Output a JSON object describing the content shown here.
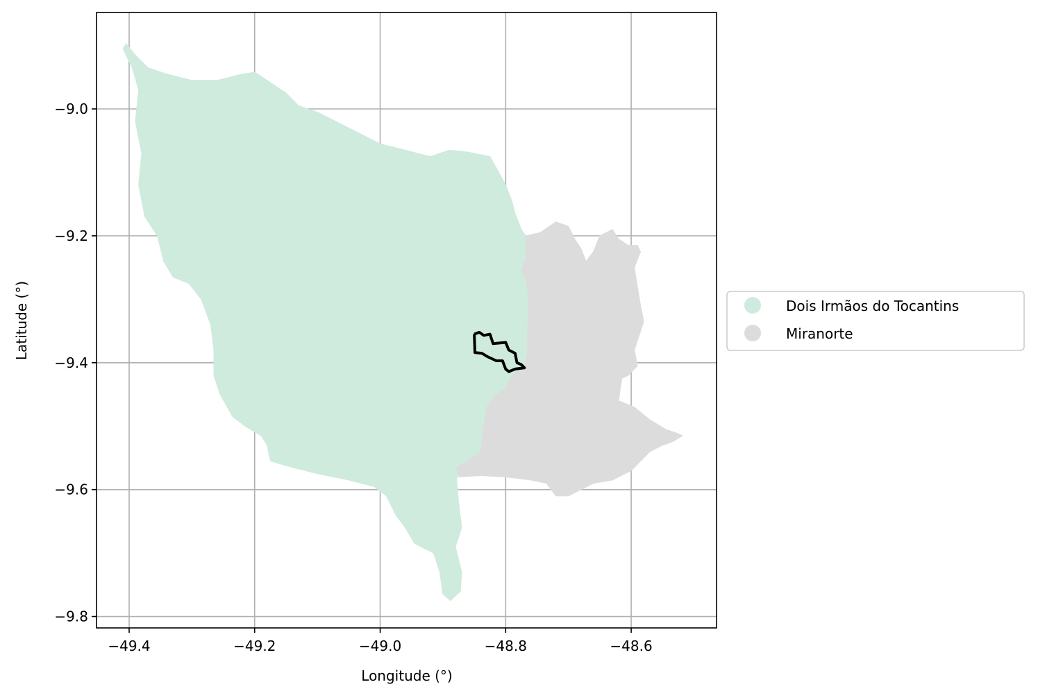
{
  "chart_data": {
    "type": "map",
    "xlabel": "Longitude (°)",
    "ylabel": "Latitude (°)",
    "xlim": [
      -49.452,
      -48.464
    ],
    "ylim": [
      -9.818,
      -8.848
    ],
    "grid": true,
    "x_ticks": [
      -49.4,
      -49.2,
      -49.0,
      -48.8,
      -48.6
    ],
    "y_ticks": [
      -9.0,
      -9.2,
      -9.4,
      -9.6,
      -9.8
    ],
    "x_tick_labels": [
      "−49.4",
      "−49.2",
      "−49.0",
      "−48.8",
      "−48.6"
    ],
    "y_tick_labels": [
      "−9.0",
      "−9.2",
      "−9.4",
      "−9.6",
      "−9.8"
    ],
    "legend_placement": "center-right, outside plot",
    "legend": [
      {
        "label": "Dois Irmãos do Tocantins",
        "color": "#cfebdd"
      },
      {
        "label": "Miranorte",
        "color": "#dcdcdc"
      }
    ],
    "regions": [
      {
        "name": "Dois Irmãos do Tocantins",
        "color": "#cfebdd",
        "polygon": [
          [
            -49.405,
            -8.897
          ],
          [
            -49.39,
            -8.915
          ],
          [
            -49.37,
            -8.935
          ],
          [
            -49.34,
            -8.945
          ],
          [
            -49.3,
            -8.955
          ],
          [
            -49.26,
            -8.955
          ],
          [
            -49.22,
            -8.945
          ],
          [
            -49.2,
            -8.942
          ],
          [
            -49.18,
            -8.955
          ],
          [
            -49.15,
            -8.975
          ],
          [
            -49.13,
            -8.995
          ],
          [
            -49.1,
            -9.005
          ],
          [
            -49.07,
            -9.02
          ],
          [
            -49.04,
            -9.035
          ],
          [
            -49.0,
            -9.055
          ],
          [
            -48.96,
            -9.065
          ],
          [
            -48.92,
            -9.075
          ],
          [
            -48.89,
            -9.065
          ],
          [
            -48.86,
            -9.068
          ],
          [
            -48.825,
            -9.075
          ],
          [
            -48.812,
            -9.098
          ],
          [
            -48.8,
            -9.12
          ],
          [
            -48.79,
            -9.145
          ],
          [
            -48.785,
            -9.165
          ],
          [
            -48.775,
            -9.19
          ],
          [
            -48.768,
            -9.2
          ],
          [
            -48.768,
            -9.235
          ],
          [
            -48.775,
            -9.255
          ],
          [
            -48.768,
            -9.268
          ],
          [
            -48.763,
            -9.3
          ],
          [
            -48.765,
            -9.35
          ],
          [
            -48.765,
            -9.385
          ],
          [
            -48.77,
            -9.405
          ],
          [
            -48.79,
            -9.42
          ],
          [
            -48.8,
            -9.44
          ],
          [
            -48.815,
            -9.45
          ],
          [
            -48.83,
            -9.47
          ],
          [
            -48.835,
            -9.5
          ],
          [
            -48.84,
            -9.54
          ],
          [
            -48.86,
            -9.555
          ],
          [
            -48.875,
            -9.565
          ],
          [
            -48.878,
            -9.585
          ],
          [
            -48.875,
            -9.62
          ],
          [
            -48.87,
            -9.66
          ],
          [
            -48.88,
            -9.69
          ],
          [
            -48.87,
            -9.73
          ],
          [
            -48.872,
            -9.76
          ],
          [
            -48.888,
            -9.775
          ],
          [
            -48.9,
            -9.765
          ],
          [
            -48.905,
            -9.73
          ],
          [
            -48.915,
            -9.7
          ],
          [
            -48.945,
            -9.685
          ],
          [
            -48.96,
            -9.66
          ],
          [
            -48.975,
            -9.64
          ],
          [
            -48.99,
            -9.61
          ],
          [
            -49.01,
            -9.595
          ],
          [
            -49.05,
            -9.585
          ],
          [
            -49.1,
            -9.575
          ],
          [
            -49.14,
            -9.565
          ],
          [
            -49.175,
            -9.555
          ],
          [
            -49.18,
            -9.53
          ],
          [
            -49.19,
            -9.515
          ],
          [
            -49.215,
            -9.5
          ],
          [
            -49.235,
            -9.485
          ],
          [
            -49.255,
            -9.45
          ],
          [
            -49.265,
            -9.42
          ],
          [
            -49.265,
            -9.38
          ],
          [
            -49.27,
            -9.34
          ],
          [
            -49.285,
            -9.3
          ],
          [
            -49.305,
            -9.275
          ],
          [
            -49.33,
            -9.265
          ],
          [
            -49.345,
            -9.24
          ],
          [
            -49.355,
            -9.2
          ],
          [
            -49.375,
            -9.17
          ],
          [
            -49.385,
            -9.12
          ],
          [
            -49.38,
            -9.07
          ],
          [
            -49.39,
            -9.02
          ],
          [
            -49.385,
            -8.97
          ],
          [
            -49.395,
            -8.935
          ],
          [
            -49.41,
            -8.905
          ]
        ]
      },
      {
        "name": "Miranorte",
        "color": "#dcdcdc",
        "polygon": [
          [
            -48.768,
            -9.2
          ],
          [
            -48.745,
            -9.195
          ],
          [
            -48.72,
            -9.178
          ],
          [
            -48.7,
            -9.185
          ],
          [
            -48.69,
            -9.205
          ],
          [
            -48.68,
            -9.22
          ],
          [
            -48.672,
            -9.24
          ],
          [
            -48.66,
            -9.225
          ],
          [
            -48.65,
            -9.2
          ],
          [
            -48.63,
            -9.19
          ],
          [
            -48.62,
            -9.205
          ],
          [
            -48.605,
            -9.215
          ],
          [
            -48.59,
            -9.215
          ],
          [
            -48.585,
            -9.225
          ],
          [
            -48.595,
            -9.25
          ],
          [
            -48.59,
            -9.28
          ],
          [
            -48.585,
            -9.31
          ],
          [
            -48.58,
            -9.335
          ],
          [
            -48.595,
            -9.38
          ],
          [
            -48.59,
            -9.405
          ],
          [
            -48.605,
            -9.42
          ],
          [
            -48.615,
            -9.425
          ],
          [
            -48.62,
            -9.46
          ],
          [
            -48.595,
            -9.47
          ],
          [
            -48.57,
            -9.49
          ],
          [
            -48.545,
            -9.505
          ],
          [
            -48.53,
            -9.51
          ],
          [
            -48.518,
            -9.515
          ],
          [
            -48.535,
            -9.525
          ],
          [
            -48.55,
            -9.53
          ],
          [
            -48.57,
            -9.54
          ],
          [
            -48.6,
            -9.57
          ],
          [
            -48.63,
            -9.585
          ],
          [
            -48.66,
            -9.59
          ],
          [
            -48.68,
            -9.6
          ],
          [
            -48.7,
            -9.61
          ],
          [
            -48.72,
            -9.61
          ],
          [
            -48.735,
            -9.59
          ],
          [
            -48.76,
            -9.585
          ],
          [
            -48.8,
            -9.58
          ],
          [
            -48.84,
            -9.578
          ],
          [
            -48.875,
            -9.58
          ],
          [
            -48.878,
            -9.565
          ],
          [
            -48.86,
            -9.555
          ],
          [
            -48.84,
            -9.54
          ],
          [
            -48.835,
            -9.5
          ],
          [
            -48.83,
            -9.47
          ],
          [
            -48.815,
            -9.45
          ],
          [
            -48.8,
            -9.44
          ],
          [
            -48.79,
            -9.42
          ],
          [
            -48.77,
            -9.405
          ],
          [
            -48.765,
            -9.385
          ],
          [
            -48.765,
            -9.35
          ],
          [
            -48.763,
            -9.3
          ],
          [
            -48.768,
            -9.268
          ],
          [
            -48.775,
            -9.255
          ],
          [
            -48.768,
            -9.235
          ]
        ]
      }
    ],
    "highlight_outline": {
      "color": "#000000",
      "polyline": [
        [
          -48.85,
          -9.355
        ],
        [
          -48.842,
          -9.352
        ],
        [
          -48.835,
          -9.357
        ],
        [
          -48.825,
          -9.355
        ],
        [
          -48.82,
          -9.37
        ],
        [
          -48.8,
          -9.368
        ],
        [
          -48.795,
          -9.38
        ],
        [
          -48.785,
          -9.385
        ],
        [
          -48.782,
          -9.4
        ],
        [
          -48.775,
          -9.403
        ],
        [
          -48.77,
          -9.408
        ],
        [
          -48.785,
          -9.41
        ],
        [
          -48.795,
          -9.414
        ],
        [
          -48.8,
          -9.41
        ],
        [
          -48.805,
          -9.397
        ],
        [
          -48.815,
          -9.397
        ],
        [
          -48.83,
          -9.39
        ],
        [
          -48.838,
          -9.385
        ],
        [
          -48.849,
          -9.384
        ],
        [
          -48.85,
          -9.355
        ]
      ]
    }
  }
}
